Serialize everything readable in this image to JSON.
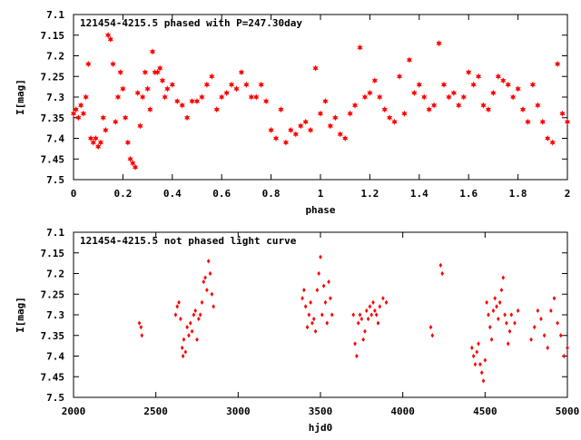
{
  "chart_data": [
    {
      "type": "scatter",
      "title": "121454-4215.5 phased with P=247.30day",
      "xlabel": "phase",
      "ylabel": "I[mag]",
      "xlim": [
        0,
        2
      ],
      "ylim": [
        7.5,
        7.1
      ],
      "y_inverted": true,
      "x_ticks": [
        "0",
        "0.2",
        "0.4",
        "0.6",
        "0.8",
        "1",
        "1.2",
        "1.4",
        "1.6",
        "1.8",
        "2"
      ],
      "y_ticks": [
        "7.1",
        "7.15",
        "7.2",
        "7.25",
        "7.3",
        "7.35",
        "7.4",
        "7.45",
        "7.5"
      ],
      "grid": false,
      "marker": "star",
      "color": "#ff0000",
      "series": [
        {
          "x": [
            0.0,
            0.01,
            0.02,
            0.03,
            0.04,
            0.05,
            0.06,
            0.07,
            0.08,
            0.09,
            0.1,
            0.11,
            0.12,
            0.13,
            0.14,
            0.15,
            0.16,
            0.17,
            0.18,
            0.19,
            0.2,
            0.21,
            0.22,
            0.23,
            0.24,
            0.25,
            0.26,
            0.27,
            0.28,
            0.29,
            0.3,
            0.31,
            0.32,
            0.33,
            0.34,
            0.35,
            0.36,
            0.37,
            0.38,
            0.4,
            0.42,
            0.44,
            0.46,
            0.48,
            0.5,
            0.52,
            0.54,
            0.56,
            0.58,
            0.6,
            0.62,
            0.64,
            0.66,
            0.68,
            0.7,
            0.72,
            0.74,
            0.76,
            0.78,
            0.8,
            0.82,
            0.84,
            0.86,
            0.88,
            0.9,
            0.92,
            0.94,
            0.96,
            0.98,
            1.0,
            1.02,
            1.04,
            1.06,
            1.08,
            1.1,
            1.12,
            1.14,
            1.16,
            1.18,
            1.2,
            1.22,
            1.24,
            1.26,
            1.28,
            1.3,
            1.32,
            1.34,
            1.36,
            1.38,
            1.4,
            1.42,
            1.44,
            1.46,
            1.48,
            1.5,
            1.52,
            1.54,
            1.56,
            1.58,
            1.6,
            1.62,
            1.64,
            1.66,
            1.68,
            1.7,
            1.72,
            1.74,
            1.76,
            1.78,
            1.8,
            1.82,
            1.84,
            1.86,
            1.88,
            1.9,
            1.92,
            1.94,
            1.96,
            1.98,
            2.0
          ],
          "y": [
            7.34,
            7.33,
            7.35,
            7.32,
            7.34,
            7.3,
            7.22,
            7.4,
            7.41,
            7.4,
            7.42,
            7.41,
            7.35,
            7.38,
            7.15,
            7.16,
            7.22,
            7.36,
            7.3,
            7.24,
            7.28,
            7.35,
            7.41,
            7.45,
            7.46,
            7.47,
            7.29,
            7.37,
            7.3,
            7.24,
            7.28,
            7.33,
            7.19,
            7.24,
            7.24,
            7.23,
            7.26,
            7.3,
            7.28,
            7.27,
            7.31,
            7.32,
            7.35,
            7.31,
            7.31,
            7.3,
            7.27,
            7.25,
            7.33,
            7.3,
            7.29,
            7.27,
            7.28,
            7.24,
            7.27,
            7.3,
            7.3,
            7.27,
            7.31,
            7.38,
            7.4,
            7.33,
            7.41,
            7.38,
            7.39,
            7.37,
            7.36,
            7.38,
            7.23,
            7.34,
            7.31,
            7.37,
            7.35,
            7.39,
            7.4,
            7.34,
            7.32,
            7.18,
            7.3,
            7.29,
            7.26,
            7.3,
            7.33,
            7.35,
            7.36,
            7.25,
            7.34,
            7.21,
            7.29,
            7.27,
            7.3,
            7.33,
            7.32,
            7.17,
            7.27,
            7.3,
            7.29,
            7.32,
            7.3,
            7.24,
            7.27,
            7.25,
            7.32,
            7.33,
            7.29,
            7.25,
            7.26,
            7.27,
            7.3,
            7.28,
            7.33,
            7.36,
            7.27,
            7.32,
            7.36,
            7.4,
            7.41,
            7.22,
            7.34,
            7.36
          ]
        }
      ]
    },
    {
      "type": "scatter",
      "title": "121454-4215.5 not phased light curve",
      "xlabel": "hjd0",
      "ylabel": "I[mag]",
      "xlim": [
        2000,
        5000
      ],
      "ylim": [
        7.5,
        7.1
      ],
      "y_inverted": true,
      "x_ticks": [
        "2000",
        "2500",
        "3000",
        "3500",
        "4000",
        "4500",
        "5000"
      ],
      "y_ticks": [
        "7.1",
        "7.15",
        "7.2",
        "7.25",
        "7.3",
        "7.35",
        "7.4",
        "7.45",
        "7.5"
      ],
      "grid": false,
      "marker": "diamond",
      "color": "#ff0000",
      "series": [
        {
          "x": [
            2400,
            2410,
            2415,
            2620,
            2630,
            2640,
            2650,
            2660,
            2665,
            2670,
            2680,
            2690,
            2700,
            2710,
            2720,
            2730,
            2740,
            2750,
            2760,
            2770,
            2780,
            2790,
            2800,
            2810,
            2820,
            2830,
            2840,
            2850,
            3390,
            3400,
            3410,
            3420,
            3430,
            3440,
            3450,
            3460,
            3470,
            3480,
            3490,
            3500,
            3510,
            3520,
            3530,
            3540,
            3550,
            3560,
            3570,
            3700,
            3710,
            3720,
            3730,
            3740,
            3750,
            3760,
            3770,
            3780,
            3790,
            3800,
            3810,
            3820,
            3830,
            3840,
            3850,
            3860,
            3880,
            3900,
            4170,
            4180,
            4230,
            4240,
            4420,
            4430,
            4440,
            4450,
            4460,
            4470,
            4480,
            4490,
            4500,
            4510,
            4520,
            4530,
            4540,
            4550,
            4560,
            4570,
            4580,
            4590,
            4600,
            4610,
            4620,
            4630,
            4640,
            4650,
            4660,
            4680,
            4700,
            4780,
            4800,
            4820,
            4840,
            4860,
            4880,
            4900,
            4920,
            4940,
            4960,
            4980,
            5000
          ],
          "y": [
            7.32,
            7.33,
            7.35,
            7.3,
            7.28,
            7.27,
            7.31,
            7.38,
            7.4,
            7.36,
            7.39,
            7.33,
            7.35,
            7.32,
            7.34,
            7.3,
            7.29,
            7.36,
            7.31,
            7.3,
            7.27,
            7.22,
            7.21,
            7.24,
            7.17,
            7.2,
            7.25,
            7.28,
            7.26,
            7.24,
            7.28,
            7.33,
            7.3,
            7.27,
            7.32,
            7.31,
            7.34,
            7.24,
            7.2,
            7.16,
            7.3,
            7.23,
            7.27,
            7.32,
            7.22,
            7.26,
            7.3,
            7.3,
            7.37,
            7.4,
            7.32,
            7.3,
            7.31,
            7.36,
            7.34,
            7.29,
            7.31,
            7.28,
            7.3,
            7.27,
            7.29,
            7.3,
            7.32,
            7.28,
            7.26,
            7.27,
            7.33,
            7.35,
            7.18,
            7.2,
            7.38,
            7.4,
            7.42,
            7.39,
            7.37,
            7.42,
            7.44,
            7.46,
            7.41,
            7.27,
            7.3,
            7.33,
            7.36,
            7.29,
            7.26,
            7.28,
            7.31,
            7.27,
            7.24,
            7.21,
            7.3,
            7.32,
            7.37,
            7.34,
            7.3,
            7.32,
            7.29,
            7.36,
            7.33,
            7.29,
            7.31,
            7.35,
            7.38,
            7.29,
            7.26,
            7.32,
            7.35,
            7.4,
            7.38
          ]
        }
      ]
    }
  ]
}
